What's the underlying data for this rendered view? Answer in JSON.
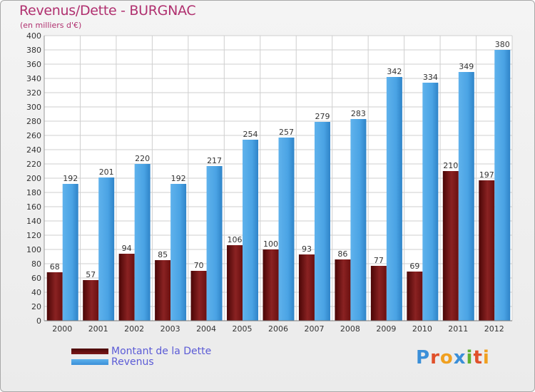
{
  "header": {
    "title": "Revenus/Dette - BURGNAC",
    "subtitle": "(en milliers d'€)"
  },
  "colors": {
    "dette": "#7a1818",
    "revenus": "#4aa3e4",
    "title": "#b0306f",
    "legend_text": "#5b5bd6"
  },
  "chart_data": {
    "type": "bar",
    "title": "Revenus/Dette - BURGNAC",
    "subtitle": "(en milliers d'€)",
    "categories": [
      "2000",
      "2001",
      "2002",
      "2003",
      "2004",
      "2005",
      "2006",
      "2007",
      "2008",
      "2009",
      "2010",
      "2011",
      "2012"
    ],
    "series": [
      {
        "name": "Montant de la Dette",
        "values": [
          68,
          57,
          94,
          85,
          70,
          106,
          100,
          93,
          86,
          77,
          69,
          210,
          197
        ]
      },
      {
        "name": "Revenus",
        "values": [
          192,
          201,
          220,
          192,
          217,
          254,
          257,
          279,
          283,
          342,
          334,
          349,
          380
        ]
      }
    ],
    "ylim": [
      0,
      400
    ],
    "ytick_step": 20,
    "grid": true,
    "xlabel": "",
    "ylabel": ""
  },
  "legend": {
    "items": [
      {
        "label": "Montant de la Dette"
      },
      {
        "label": "Revenus"
      }
    ]
  },
  "logo": {
    "text": "Proxiti",
    "letters": [
      "P",
      "r",
      "o",
      "x",
      "i",
      "t",
      "i"
    ],
    "letter_colors": [
      "#3a8fd8",
      "#e0502a",
      "#f0a020",
      "#3a8fd8",
      "#60b030",
      "#e0502a",
      "#f0a020"
    ]
  }
}
